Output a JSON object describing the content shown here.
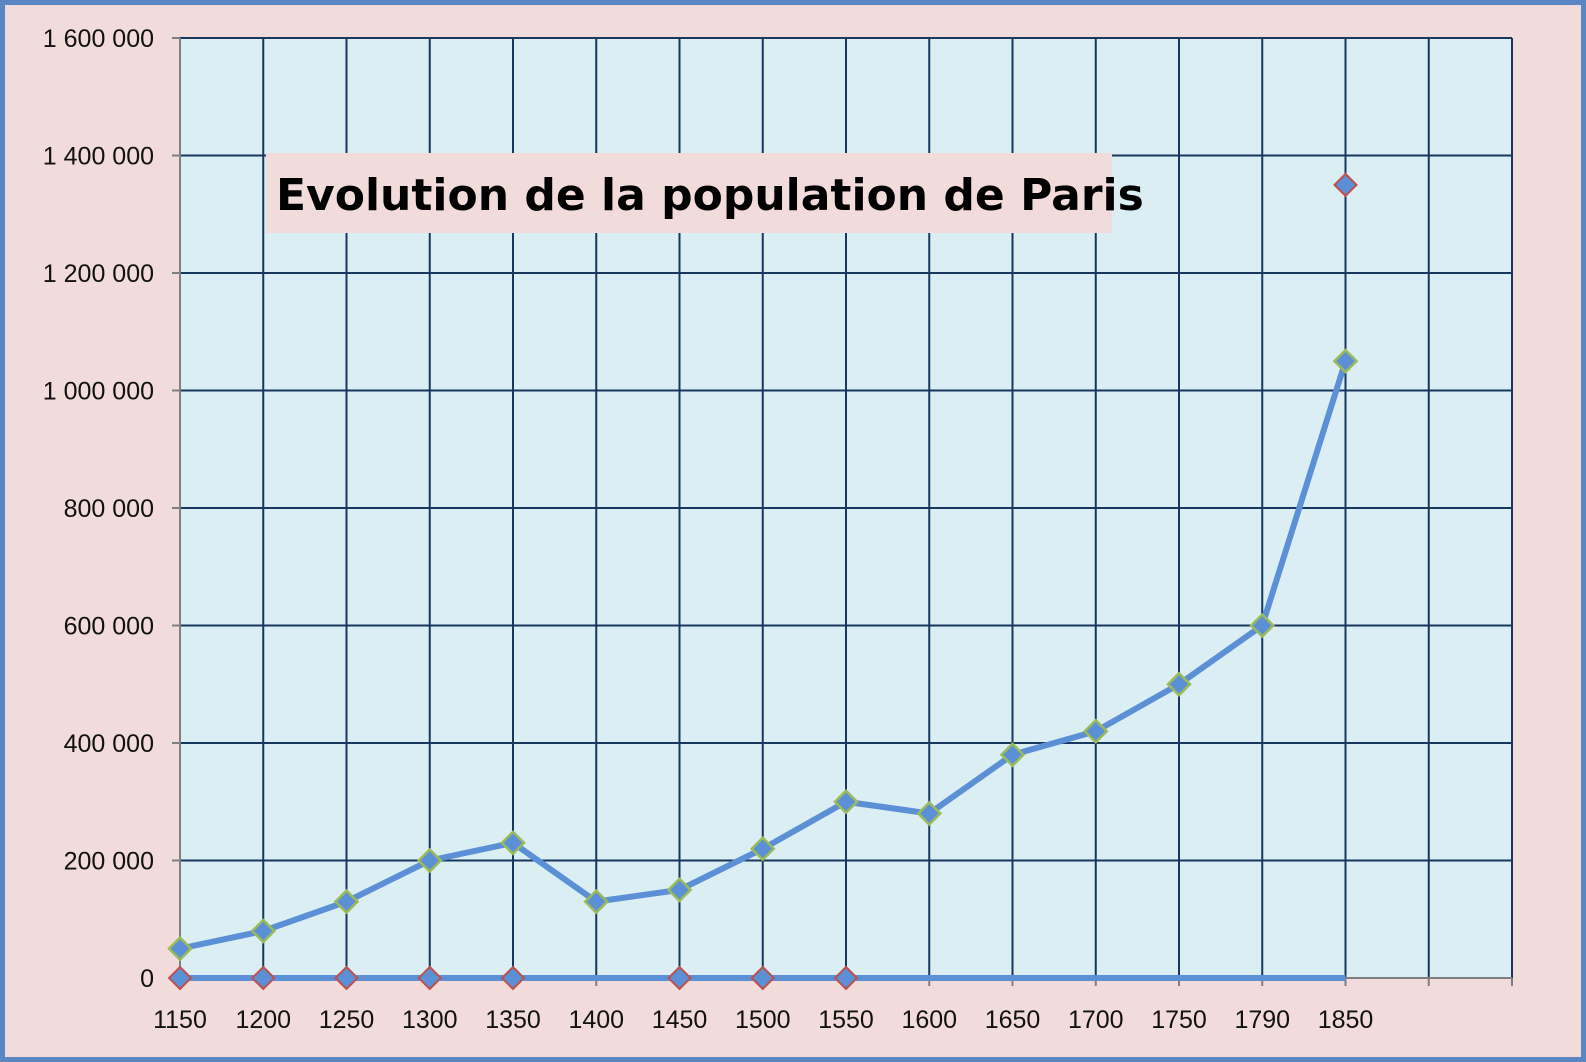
{
  "chart_data": {
    "type": "line",
    "title": "Evolution de la population de Paris",
    "xlabel": "",
    "ylabel": "",
    "categories": [
      "1150",
      "1200",
      "1250",
      "1300",
      "1350",
      "1400",
      "1450",
      "1500",
      "1550",
      "1600",
      "1650",
      "1700",
      "1750",
      "1790",
      "1850"
    ],
    "ylim": [
      0,
      1600000
    ],
    "yticks": [
      {
        "value": 0,
        "label": "0"
      },
      {
        "value": 200000,
        "label": "200 000"
      },
      {
        "value": 400000,
        "label": "400 000"
      },
      {
        "value": 600000,
        "label": "600 000"
      },
      {
        "value": 800000,
        "label": "800 000"
      },
      {
        "value": 1000000,
        "label": "1 000 000"
      },
      {
        "value": 1200000,
        "label": "1 200 000"
      },
      {
        "value": 1400000,
        "label": "1 400 000"
      },
      {
        "value": 1600000,
        "label": "1 600 000"
      }
    ],
    "grid": true,
    "legend": "none",
    "series": [
      {
        "values": [
          50000,
          80000,
          130000,
          200000,
          230000,
          130000,
          150000,
          220000,
          300000,
          280000,
          380000,
          420000,
          500000,
          600000,
          1050000
        ],
        "color": "#5b8fd6",
        "marker": "diamond",
        "marker_edge": "#9bbb59"
      },
      {
        "values": [
          0,
          0,
          0,
          0,
          0,
          null,
          0,
          0,
          0,
          null,
          null,
          null,
          null,
          null,
          1350000
        ],
        "color": "#5b8fd6",
        "marker": "diamond",
        "marker_edge": "#c0504d"
      }
    ],
    "colors": {
      "plot_background": "#daeef3",
      "outer_background": "#f2dcdb",
      "grid": "#17375e",
      "border": "#5b86c4"
    }
  }
}
